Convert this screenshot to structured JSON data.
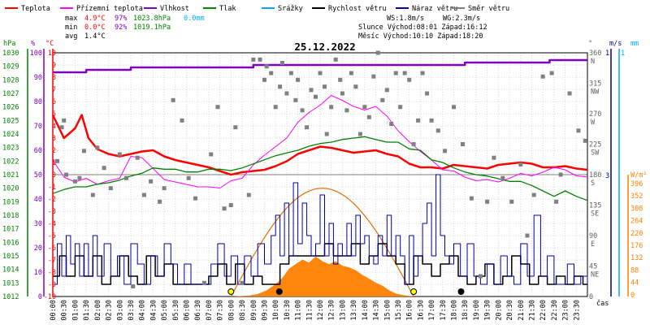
{
  "chart_data": {
    "type": "line",
    "title": "25.12.2022",
    "legend": [
      {
        "label": "Teplota",
        "color": "#ff0000"
      },
      {
        "label": "Přízemní teplota",
        "color": "#ff00ff"
      },
      {
        "label": "Vlhkost",
        "color": "#8000c0"
      },
      {
        "label": "Tlak",
        "color": "#008000"
      },
      {
        "label": "Srážky",
        "color": "#00aaff"
      },
      {
        "label": "Rychlost větru",
        "color": "#000000"
      },
      {
        "label": "Náraz větru",
        "color": "#0000a0"
      },
      {
        "label": "Směr větru",
        "color": "#808080"
      }
    ],
    "stats": {
      "max": {
        "label": "max",
        "temp": "4.9°C",
        "hum": "97%",
        "press": "1023.8hPa",
        "rain": "0.0mm"
      },
      "min": {
        "label": "min",
        "temp": "0.0°C",
        "hum": "92%",
        "press": "1019.1hPa"
      },
      "avg": {
        "label": "avg",
        "temp": "1.4°C"
      }
    },
    "info": {
      "ws": "WS:1.8m/s",
      "wg": "WG:2.3m/s",
      "sun": "Slunce Východ:08:01  Západ:16:12",
      "moon": "Měsíc  Východ:10:10  Západ:18:20"
    },
    "axis_units": {
      "hpa": "hPa",
      "pct": "%",
      "degc": "°C",
      "deg": "°",
      "ms": "m/s",
      "mm": "mm",
      "wm2": "W/m²",
      "time": "čas"
    },
    "axes": {
      "hpa_ticks": [
        1030,
        1029,
        1028,
        1027,
        1026,
        1025,
        1024,
        1023,
        1022,
        1021,
        1020,
        1019,
        1018,
        1017,
        1016,
        1015,
        1014,
        1013,
        1012
      ],
      "pct_ticks": [
        100,
        90,
        80,
        70,
        60,
        50,
        40,
        30,
        20,
        10,
        0
      ],
      "temp_ticks": [
        10,
        9,
        8,
        7,
        6,
        5,
        4,
        3,
        2,
        1,
        0,
        -1,
        -2,
        -3,
        -4,
        -5,
        -6,
        -7,
        -8,
        -9,
        -10
      ],
      "deg_ticks": [
        {
          "v": "360",
          "d": "N"
        },
        {
          "v": "315",
          "d": "NW"
        },
        {
          "v": "270",
          "d": "W"
        },
        {
          "v": "225",
          "d": "SW"
        },
        {
          "v": "180",
          "d": "S"
        },
        {
          "v": "135",
          "d": "SE"
        },
        {
          "v": "90",
          "d": "E"
        },
        {
          "v": "45",
          "d": "NE"
        },
        {
          "v": "0",
          "d": ""
        }
      ],
      "ms_ticks": [
        "3",
        "1"
      ],
      "mm_ticks": [
        "1"
      ],
      "solar_ticks": [
        396,
        352,
        308,
        264,
        220,
        176,
        132,
        88,
        44,
        0
      ],
      "time_labels": [
        "00:00",
        "00:30",
        "01:00",
        "01:30",
        "02:00",
        "02:30",
        "03:00",
        "03:30",
        "04:00",
        "04:30",
        "05:00",
        "05:30",
        "06:00",
        "06:30",
        "07:00",
        "07:30",
        "08:00",
        "08:30",
        "09:00",
        "09:30",
        "10:00",
        "10:30",
        "11:00",
        "11:30",
        "12:00",
        "12:30",
        "13:00",
        "13:30",
        "14:00",
        "14:30",
        "15:00",
        "15:30",
        "16:00",
        "16:30",
        "17:00",
        "17:30",
        "18:00",
        "18:30",
        "19:00",
        "19:30",
        "20:00",
        "20:30",
        "21:00",
        "21:30",
        "22:00",
        "22:30",
        "23:00",
        "23:30"
      ]
    },
    "ranges": {
      "temp": [
        -10,
        10
      ],
      "humidity": [
        0,
        100
      ],
      "pressure": [
        1012,
        1030
      ],
      "wind_ms": [
        0,
        3
      ],
      "direction_deg": [
        0,
        360
      ],
      "solar_wm2": [
        0,
        396
      ],
      "time_h": [
        0,
        24
      ]
    },
    "series": [
      {
        "name": "Teplota",
        "unit": "°C",
        "t": [
          0,
          0.5,
          1,
          1.3,
          1.6,
          2,
          2.5,
          3,
          3.5,
          4,
          4.5,
          5,
          5.5,
          6,
          6.5,
          7,
          7.5,
          8,
          8.5,
          9,
          9.5,
          10,
          10.5,
          11,
          11.5,
          12,
          12.5,
          13,
          13.5,
          14,
          14.5,
          15,
          15.5,
          16,
          16.5,
          17,
          17.5,
          18,
          18.5,
          19,
          19.5,
          20,
          20.5,
          21,
          21.5,
          22,
          22.5,
          23,
          23.5,
          24
        ],
        "v": [
          4.9,
          3.0,
          3.8,
          4.9,
          3.0,
          2.1,
          1.7,
          1.5,
          1.7,
          1.9,
          2.0,
          1.5,
          1.2,
          1.0,
          0.8,
          0.6,
          0.3,
          0.0,
          0.2,
          0.3,
          0.4,
          0.7,
          1.1,
          1.7,
          2.0,
          2.3,
          2.2,
          2.0,
          1.8,
          1.9,
          2.0,
          1.7,
          1.5,
          0.9,
          0.6,
          0.6,
          0.5,
          0.8,
          0.7,
          0.6,
          0.5,
          0.8,
          0.9,
          1.0,
          0.9,
          0.6,
          0.6,
          0.7,
          0.5,
          0.4
        ]
      },
      {
        "name": "Přízemní teplota",
        "unit": "°C",
        "t": [
          0,
          0.5,
          1,
          1.5,
          2,
          2.5,
          3,
          3.5,
          4,
          4.5,
          5,
          5.5,
          6,
          6.5,
          7,
          7.5,
          8,
          8.5,
          9,
          9.5,
          10,
          10.5,
          11,
          11.5,
          12,
          12.5,
          13,
          13.5,
          14,
          14.5,
          15,
          15.5,
          16,
          16.5,
          17,
          17.5,
          18,
          18.5,
          19,
          19.5,
          20,
          20.5,
          21,
          21.5,
          22,
          22.5,
          23,
          23.5,
          24
        ],
        "v": [
          1.2,
          -0.2,
          -0.6,
          -0.3,
          -0.8,
          -0.5,
          -0.3,
          1.5,
          1.4,
          0.5,
          -0.4,
          -0.6,
          -0.8,
          -1.0,
          -1.0,
          -1.1,
          -0.5,
          -0.3,
          0.8,
          1.6,
          2.3,
          3.0,
          4.3,
          5.1,
          5.7,
          6.5,
          6.1,
          5.6,
          5.3,
          5.6,
          4.8,
          3.6,
          2.7,
          1.9,
          1.2,
          0.4,
          0.3,
          -0.2,
          -0.5,
          -0.4,
          -0.6,
          -0.3,
          0.1,
          -0.1,
          0.2,
          0.6,
          0.4,
          -0.1,
          -0.2
        ]
      },
      {
        "name": "Vlhkost",
        "unit": "%",
        "t": [
          0,
          1,
          1.5,
          3,
          3.5,
          4.5,
          7,
          9,
          11,
          13,
          15,
          17,
          18.5,
          21,
          22.3,
          24
        ],
        "v": [
          92,
          92,
          93,
          93,
          94,
          94,
          94,
          95,
          95,
          95,
          95,
          95,
          96,
          96,
          97,
          97
        ]
      },
      {
        "name": "Tlak",
        "unit": "hPa",
        "t": [
          0,
          0.5,
          1,
          1.5,
          2,
          2.5,
          3,
          3.5,
          4,
          4.5,
          5,
          5.5,
          6,
          6.5,
          7,
          7.5,
          8,
          8.5,
          9,
          9.5,
          10,
          10.5,
          11,
          11.5,
          12,
          12.5,
          13,
          13.5,
          14,
          14.5,
          15,
          15.5,
          16,
          16.5,
          17,
          17.5,
          18,
          18.5,
          19,
          19.5,
          20,
          20.5,
          21,
          21.5,
          22,
          22.5,
          23,
          23.5,
          24
        ],
        "v": [
          1019.6,
          1019.9,
          1020.1,
          1020.1,
          1020.3,
          1020.4,
          1020.6,
          1020.9,
          1021.1,
          1021.5,
          1021.4,
          1021.4,
          1021.2,
          1021.2,
          1021.4,
          1021.4,
          1021.3,
          1021.5,
          1021.8,
          1022.1,
          1022.4,
          1022.6,
          1022.8,
          1023.1,
          1023.3,
          1023.4,
          1023.6,
          1023.7,
          1023.8,
          1023.6,
          1023.4,
          1023.4,
          1022.9,
          1022.8,
          1022.1,
          1021.9,
          1021.5,
          1021.2,
          1021.0,
          1020.9,
          1020.7,
          1020.5,
          1020.5,
          1020.2,
          1019.8,
          1019.4,
          1019.8,
          1019.4,
          1019.1
        ]
      },
      {
        "name": "Rychlost větru",
        "unit": "m/s",
        "t": [
          0,
          0.3,
          0.6,
          1,
          1.4,
          1.8,
          2.2,
          2.6,
          3,
          3.4,
          3.8,
          4.2,
          4.6,
          5,
          5.4,
          5.8,
          6.2,
          6.6,
          7,
          7.4,
          7.8,
          8.2,
          8.6,
          9,
          9.4,
          9.8,
          10.2,
          10.6,
          11,
          11.4,
          11.8,
          12.2,
          12.6,
          13,
          13.4,
          13.8,
          14.2,
          14.6,
          15,
          15.4,
          15.8,
          16.2,
          16.6,
          17,
          17.4,
          17.8,
          18.2,
          18.6,
          19,
          19.4,
          19.8,
          20.2,
          20.6,
          21,
          21.4,
          21.8,
          22.2,
          22.6,
          23,
          23.4,
          23.8,
          24
        ],
        "v": [
          0.5,
          1.0,
          0.5,
          1.0,
          0.5,
          1.0,
          0.3,
          0.5,
          1.0,
          0.5,
          0.3,
          1.0,
          0.5,
          0.8,
          0.3,
          0.3,
          0.3,
          0.3,
          0.5,
          0.8,
          0.3,
          0.8,
          0.3,
          0.5,
          0.3,
          0.3,
          0.8,
          1.0,
          1.0,
          1.0,
          1.0,
          1.3,
          1.0,
          1.0,
          1.3,
          0.8,
          1.0,
          1.3,
          1.0,
          0.8,
          0.3,
          1.0,
          0.8,
          0.5,
          0.8,
          1.0,
          0.5,
          0.3,
          0.5,
          0.8,
          0.3,
          0.5,
          1.0,
          0.8,
          0.3,
          0.5,
          0.3,
          0.5,
          0.3,
          0.5,
          0.3,
          0.3
        ]
      },
      {
        "name": "Náraz větru",
        "unit": "m/s",
        "t": [
          0,
          0.2,
          0.4,
          0.6,
          0.8,
          1,
          1.2,
          1.4,
          1.6,
          1.8,
          2,
          2.3,
          2.6,
          2.9,
          3.2,
          3.5,
          3.8,
          4.1,
          4.4,
          4.7,
          5,
          5.3,
          5.6,
          5.9,
          6.2,
          6.5,
          6.8,
          7.1,
          7.4,
          7.7,
          8,
          8.3,
          8.6,
          8.9,
          9.2,
          9.5,
          9.8,
          10,
          10.2,
          10.4,
          10.6,
          10.8,
          11,
          11.2,
          11.4,
          11.6,
          11.8,
          12,
          12.2,
          12.4,
          12.6,
          12.8,
          13,
          13.2,
          13.4,
          13.6,
          13.8,
          14,
          14.2,
          14.4,
          14.6,
          14.8,
          15,
          15.2,
          15.4,
          15.6,
          15.8,
          16,
          16.2,
          16.4,
          16.6,
          16.8,
          17,
          17.2,
          17.4,
          17.6,
          17.8,
          18,
          18.3,
          18.6,
          18.9,
          19.2,
          19.5,
          19.8,
          20.1,
          20.4,
          20.7,
          21,
          21.3,
          21.6,
          21.9,
          22.2,
          22.5,
          22.8,
          23.1,
          23.4,
          23.7,
          24
        ],
        "v": [
          0.3,
          1.3,
          0.5,
          1.5,
          0.8,
          1.3,
          0.5,
          1.3,
          0.5,
          1.5,
          0.5,
          1.3,
          0.5,
          1.0,
          0.3,
          1.3,
          0.8,
          0.3,
          1.0,
          0.5,
          1.3,
          0.8,
          0.3,
          0.8,
          0.3,
          0.3,
          0.3,
          0.8,
          1.3,
          0.5,
          1.0,
          0.3,
          1.0,
          0.5,
          1.3,
          0.8,
          1.5,
          2.0,
          1.0,
          2.3,
          1.0,
          2.8,
          1.3,
          2.3,
          1.5,
          1.0,
          1.3,
          2.5,
          1.0,
          1.8,
          0.8,
          1.3,
          1.0,
          1.8,
          1.0,
          2.0,
          1.3,
          1.5,
          1.0,
          0.8,
          1.5,
          1.0,
          2.0,
          1.0,
          1.5,
          1.0,
          0.3,
          1.5,
          0.5,
          1.0,
          1.8,
          2.3,
          1.0,
          3.0,
          1.5,
          1.0,
          0.8,
          1.3,
          0.5,
          1.3,
          0.5,
          0.3,
          0.8,
          0.3,
          1.0,
          0.5,
          0.3,
          1.3,
          0.5,
          2.0,
          0.5,
          1.0,
          0.3,
          0.3,
          0.8,
          0.3,
          0.5,
          0.3
        ]
      },
      {
        "name": "Směr větru",
        "unit": "°",
        "type": "scatter",
        "t": [
          0.2,
          0.4,
          0.5,
          0.6,
          1.0,
          1.2,
          1.4,
          1.8,
          2.0,
          2.3,
          2.6,
          3.0,
          3.3,
          3.6,
          3.8,
          4.1,
          4.4,
          4.8,
          5.0,
          5.4,
          5.8,
          6.1,
          6.4,
          6.8,
          7.1,
          7.4,
          7.7,
          8.0,
          8.2,
          8.5,
          8.8,
          9.0,
          9.3,
          9.5,
          9.6,
          9.8,
          10.0,
          10.2,
          10.3,
          10.5,
          10.7,
          10.9,
          11.0,
          11.2,
          11.4,
          11.6,
          11.8,
          12.0,
          12.2,
          12.3,
          12.5,
          12.7,
          12.9,
          13.0,
          13.2,
          13.4,
          13.6,
          13.8,
          14.0,
          14.2,
          14.4,
          14.6,
          14.8,
          15.0,
          15.2,
          15.4,
          15.6,
          15.8,
          16.0,
          16.2,
          16.4,
          16.6,
          16.8,
          17.0,
          17.3,
          17.6,
          18.0,
          18.4,
          18.8,
          19.2,
          19.5,
          19.8,
          20.2,
          20.6,
          21.0,
          21.3,
          21.6,
          22.0,
          22.4,
          22.6,
          22.8,
          23.2,
          23.6,
          23.9
        ],
        "v": [
          200,
          250,
          260,
          180,
          170,
          175,
          215,
          150,
          220,
          190,
          160,
          210,
          175,
          15,
          205,
          150,
          170,
          140,
          160,
          290,
          260,
          175,
          145,
          20,
          210,
          280,
          130,
          135,
          250,
          20,
          150,
          350,
          350,
          320,
          340,
          330,
          280,
          310,
          345,
          300,
          330,
          290,
          320,
          275,
          250,
          305,
          295,
          330,
          310,
          240,
          280,
          350,
          320,
          300,
          275,
          330,
          310,
          240,
          280,
          265,
          325,
          360,
          290,
          305,
          255,
          330,
          280,
          330,
          320,
          225,
          260,
          330,
          300,
          260,
          245,
          215,
          280,
          225,
          145,
          30,
          140,
          205,
          175,
          140,
          195,
          90,
          150,
          325,
          330,
          140,
          180,
          300,
          245,
          230
        ]
      },
      {
        "name": "Sluneční záření",
        "unit": "W/m²",
        "t": [
          8.0,
          8.8,
          9.2,
          9.6,
          10.0,
          10.3,
          10.6,
          10.9,
          11.2,
          11.5,
          11.8,
          12.1,
          12.4,
          12.7,
          13.0,
          13.3,
          13.6,
          13.9,
          14.2,
          14.5,
          14.8,
          15.1,
          15.4,
          15.7,
          16.0,
          16.2
        ],
        "v": [
          0,
          3,
          8,
          20,
          40,
          60,
          90,
          105,
          120,
          110,
          130,
          115,
          105,
          115,
          100,
          95,
          85,
          70,
          58,
          45,
          35,
          20,
          10,
          5,
          2,
          0
        ]
      }
    ],
    "sun_curve": {
      "t": [
        8.0,
        16.2
      ],
      "peak_t": 12.1,
      "peak_w": 352
    },
    "markers": [
      {
        "kind": "sunrise",
        "t": 8.0,
        "color": "#ffff00"
      },
      {
        "kind": "sunset",
        "t": 16.2,
        "color": "#ffff00"
      },
      {
        "kind": "moonrise",
        "t": 10.17,
        "color": "#000000"
      },
      {
        "kind": "moonset",
        "t": 18.33,
        "color": "#000000"
      }
    ],
    "grid": true
  }
}
